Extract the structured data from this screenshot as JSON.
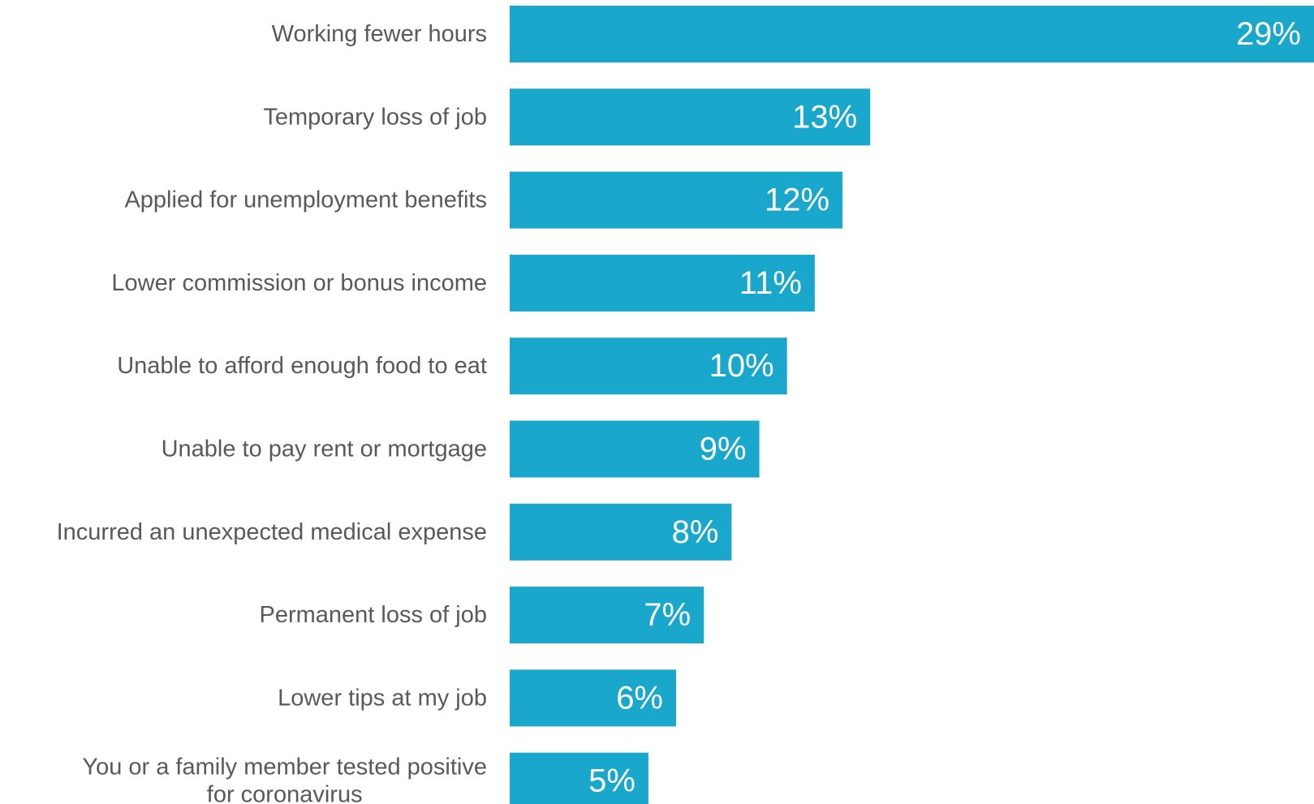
{
  "chart_data": {
    "type": "bar",
    "orientation": "horizontal",
    "categories": [
      [
        "Working fewer hours"
      ],
      [
        "Temporary loss of job"
      ],
      [
        "Applied for unemployment benefits"
      ],
      [
        "Lower commission or bonus income"
      ],
      [
        "Unable to afford enough food to eat"
      ],
      [
        "Unable to pay rent or mortgage"
      ],
      [
        "Incurred an unexpected medical expense"
      ],
      [
        "Permanent loss of job"
      ],
      [
        "Lower tips at my job"
      ],
      [
        "You or a family member tested positive",
        "for coronavirus"
      ]
    ],
    "values": [
      29,
      13,
      12,
      11,
      10,
      9,
      8,
      7,
      6,
      5
    ],
    "value_labels": [
      "29%",
      "13%",
      "12%",
      "11%",
      "10%",
      "9%",
      "8%",
      "7%",
      "6%",
      "5%"
    ],
    "unit": "%",
    "xlim": [
      0,
      29
    ],
    "grid": false,
    "legend": "none",
    "bar_color": "#1aa7cc",
    "label_color": "#595959",
    "value_label_color": "#ffffff"
  }
}
